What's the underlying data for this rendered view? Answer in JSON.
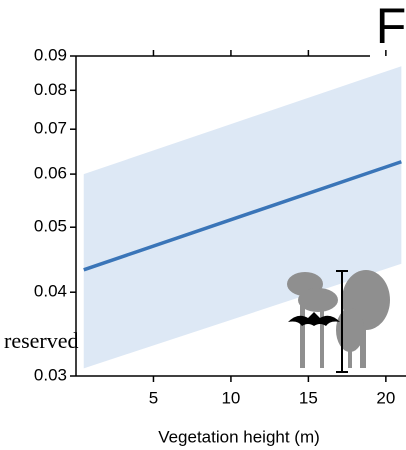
{
  "chart_data": {
    "type": "line",
    "panel_label": "F",
    "annotation": "reserved",
    "xlabel": "Vegetation height (m)",
    "x": [
      0.5,
      21
    ],
    "series": [
      {
        "color": "#3a75b8",
        "values": [
          0.0432,
          0.0626
        ]
      }
    ],
    "band": {
      "color": "#dde8f5",
      "lower": [
        0.0308,
        0.0441
      ],
      "upper": [
        0.06,
        0.0869
      ]
    },
    "xlim": [
      0,
      21.3
    ],
    "xticks": [
      5,
      10,
      15,
      20
    ],
    "ylim": [
      0.03,
      0.09
    ],
    "yticks": [
      0.03,
      0.04,
      0.05,
      0.06,
      0.07,
      0.08,
      0.09
    ],
    "yscale": "log"
  }
}
